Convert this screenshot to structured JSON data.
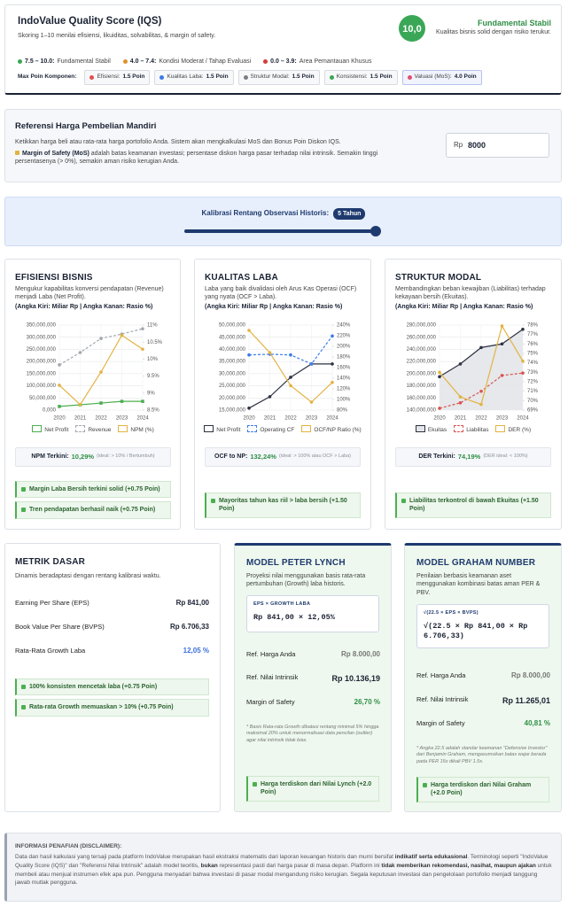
{
  "header": {
    "title": "IndoValue Quality Score (IQS)",
    "subtitle": "Skoring 1–10 menilai efisiensi, likuiditas, solvabilitas, & margin of safety.",
    "score": "10,0",
    "status": "Fundamental Stabil",
    "status_desc": "Kualitas bisnis solid dengan risiko terukur.",
    "legend": [
      {
        "range": "7.5 – 10.0:",
        "label": "Fundamental Stabil",
        "color": "#3aa757"
      },
      {
        "range": "4.0 – 7.4:",
        "label": "Kondisi Moderat / Tahap Evaluasi",
        "color": "#e0902f"
      },
      {
        "range": "0.0 – 3.9:",
        "label": "Area Pemantauan Khusus",
        "color": "#d93a3a"
      }
    ],
    "max_label": "Max Poin Komponen:",
    "components": [
      {
        "label": "Efisiensi:",
        "points": "1.5 Poin"
      },
      {
        "label": "Kualitas Laba:",
        "points": "1.5 Poin"
      },
      {
        "label": "Struktur Modal:",
        "points": "1.5 Poin"
      },
      {
        "label": "Konsistensi:",
        "points": "1.5 Poin"
      },
      {
        "label": "Valuasi (MoS):",
        "points": "4.0 Poin"
      }
    ]
  },
  "reference": {
    "title": "Referensi Harga Pembelian Mandiri",
    "desc": "Ketikkan harga beli atau rata-rata harga portofolio Anda. Sistem akan mengkalkulasi MoS dan Bonus Poin Diskon IQS.",
    "note": [
      {
        "text": "Margin of Safety (MoS)",
        "bold": true
      },
      {
        "text": " adalah batas keamanan investasi; persentase diskon harga pasar terhadap nilai intrinsik. Semakin tinggi persentasenya (> 0%), semakin aman risiko kerugian Anda.",
        "bold": false
      }
    ],
    "currency": "Rp",
    "input_value": "8000"
  },
  "slider": {
    "label": "Kalibrasi Rentang Observasi Historis:",
    "badge": "5 Tahun"
  },
  "chart_data": [
    {
      "type": "line",
      "title": "EFISIENSI BISNIS",
      "subtitle": "Mengukur kapabilitas konversi pendapatan (Revenue) menjadi Laba (Net Profit).",
      "axis_note": "(Angka Kiri: Miliar Rp | Angka Kanan: Rasio %)",
      "categories": [
        "2020",
        "2021",
        "2022",
        "2023",
        "2024"
      ],
      "series": [
        {
          "name": "Net Profit",
          "color": "#4caf50",
          "marker": "square",
          "values": [
            15000000,
            22000000,
            29000000,
            36000000,
            36000000
          ]
        },
        {
          "name": "Revenue",
          "color": "#a3a7ae",
          "dash": true,
          "values": [
            186000000,
            237000000,
            295000000,
            313000000,
            335000000
          ]
        },
        {
          "name": "NPM (%)",
          "color": "#e3b341",
          "axis": "y2",
          "values": [
            9.23,
            8.66,
            9.62,
            10.7,
            10.29
          ]
        }
      ],
      "ylim": [
        0,
        350000000
      ],
      "yticks": [
        {
          "value": 0,
          "label": "0,000"
        },
        {
          "value": 50000000,
          "label": "50,000,000"
        },
        {
          "value": 100000000,
          "label": "100,000,000"
        },
        {
          "value": 150000000,
          "label": "150,000,000"
        },
        {
          "value": 200000000,
          "label": "200,000,000"
        },
        {
          "value": 250000000,
          "label": "250,000,000"
        },
        {
          "value": 300000000,
          "label": "300,000,000"
        },
        {
          "value": 350000000,
          "label": "350,000,000"
        }
      ],
      "y2lim": [
        8.5,
        11
      ],
      "y2ticks": [
        {
          "value": 8.5,
          "label": "8.5%"
        },
        {
          "value": 9,
          "label": "9%"
        },
        {
          "value": 9.5,
          "label": "9.5%"
        },
        {
          "value": 10,
          "label": "10%"
        },
        {
          "value": 10.5,
          "label": "10.5%"
        },
        {
          "value": 11,
          "label": "11%"
        }
      ],
      "grid": true,
      "summary": {
        "label": "NPM Terkini:",
        "value": "10,29%",
        "note": "(ideal: > 10% / Bertumbuh)"
      },
      "badges": [
        "Margin Laba Bersih terkini solid (+0.75 Poin)",
        "Tren pendapatan berhasil naik (+0.75 Poin)"
      ]
    },
    {
      "type": "line",
      "title": "KUALITAS LABA",
      "subtitle": "Laba yang baik divalidasi oleh Arus Kas Operasi (OCF) yang nyata (OCF > Laba).",
      "axis_note": "(Angka Kiri: Miliar Rp | Angka Kanan: Rasio %)",
      "categories": [
        "2020",
        "2021",
        "2022",
        "2023",
        "2024"
      ],
      "series": [
        {
          "name": "Net Profit",
          "color": "#2d3142",
          "values": [
            15800000,
            20500000,
            28500000,
            34000000,
            34000000
          ]
        },
        {
          "name": "Operating CF",
          "color": "#3b7be8",
          "dash": true,
          "values": [
            37700000,
            38000000,
            37700000,
            34000000,
            45500000
          ]
        },
        {
          "name": "OCF/NP Ratio (%)",
          "color": "#e3b341",
          "axis": "y2",
          "values": [
            230,
            188,
            126,
            95,
            132.24
          ]
        }
      ],
      "ylim": [
        15000000,
        50000000
      ],
      "yticks": [
        {
          "value": 15000000,
          "label": "15,000,000"
        },
        {
          "value": 20000000,
          "label": "20,000,000"
        },
        {
          "value": 25000000,
          "label": "25,000,000"
        },
        {
          "value": 30000000,
          "label": "30,000,000"
        },
        {
          "value": 35000000,
          "label": "35,000,000"
        },
        {
          "value": 40000000,
          "label": "40,000,000"
        },
        {
          "value": 45000000,
          "label": "45,000,000"
        },
        {
          "value": 50000000,
          "label": "50,000,000"
        }
      ],
      "y2lim": [
        80,
        240
      ],
      "y2ticks": [
        {
          "value": 80,
          "label": "80%"
        },
        {
          "value": 100,
          "label": "100%"
        },
        {
          "value": 120,
          "label": "120%"
        },
        {
          "value": 140,
          "label": "140%"
        },
        {
          "value": 160,
          "label": "160%"
        },
        {
          "value": 180,
          "label": "180%"
        },
        {
          "value": 200,
          "label": "200%"
        },
        {
          "value": 220,
          "label": "220%"
        },
        {
          "value": 240,
          "label": "240%"
        }
      ],
      "grid": true,
      "summary": {
        "label": "OCF to NP:",
        "value": "132,24%",
        "note": "(ideal: > 100% atau OCF > Laba)"
      },
      "badges": [
        "Mayoritas tahun kas riil > laba bersih (+1.50 Poin)"
      ]
    },
    {
      "type": "line",
      "title": "STRUKTUR MODAL",
      "subtitle": "Membandingkan beban kewajiban (Liabilitas) terhadap kekayaan bersih (Ekuitas).",
      "axis_note": "(Angka Kiri: Miliar Rp | Angka Kanan: Rasio %)",
      "categories": [
        "2020",
        "2021",
        "2022",
        "2023",
        "2024"
      ],
      "series": [
        {
          "name": "Ekuitas",
          "color": "#2d3142",
          "fill": "#e3e5e9",
          "values": [
            195000000,
            216000000,
            243000000,
            249000000,
            273000000
          ]
        },
        {
          "name": "Liabilitas",
          "color": "#d9534f",
          "dash": true,
          "values": [
            143000000,
            152000000,
            171000000,
            197000000,
            201000000
          ]
        },
        {
          "name": "DER (%)",
          "color": "#e3b341",
          "axis": "y2",
          "values": [
            73,
            70.4,
            69.6,
            77.9,
            74.19
          ]
        }
      ],
      "ylim": [
        140000000,
        280000000
      ],
      "yticks": [
        {
          "value": 140000000,
          "label": "140,000,000"
        },
        {
          "value": 160000000,
          "label": "160,000,000"
        },
        {
          "value": 180000000,
          "label": "180,000,000"
        },
        {
          "value": 200000000,
          "label": "200,000,000"
        },
        {
          "value": 220000000,
          "label": "220,000,000"
        },
        {
          "value": 240000000,
          "label": "240,000,000"
        },
        {
          "value": 260000000,
          "label": "260,000,000"
        },
        {
          "value": 280000000,
          "label": "280,000,000"
        }
      ],
      "y2lim": [
        69,
        78
      ],
      "y2ticks": [
        {
          "value": 69,
          "label": "69%"
        },
        {
          "value": 70,
          "label": "70%"
        },
        {
          "value": 71,
          "label": "71%"
        },
        {
          "value": 72,
          "label": "72%"
        },
        {
          "value": 73,
          "label": "73%"
        },
        {
          "value": 74,
          "label": "74%"
        },
        {
          "value": 75,
          "label": "75%"
        },
        {
          "value": 76,
          "label": "76%"
        },
        {
          "value": 77,
          "label": "77%"
        },
        {
          "value": 78,
          "label": "78%"
        }
      ],
      "grid": true,
      "summary": {
        "label": "DER Terkini:",
        "value": "74,19%",
        "note": "(DER ideal: < 100%)"
      },
      "badges": [
        "Liabilitas terkontrol di bawah Ekuitas (+1.50 Poin)"
      ]
    }
  ],
  "metrics": {
    "title": "METRIK DASAR",
    "desc": "Dinamis beradaptasi dengan rentang kalibrasi waktu.",
    "rows": [
      {
        "label": "Earning Per Share (EPS)",
        "value": "Rp 841,00"
      },
      {
        "label": "Book Value Per Share (BVPS)",
        "value": "Rp 6.706,33"
      },
      {
        "label": "Rata-Rata Growth Laba",
        "value": "12,05 %"
      }
    ],
    "badges": [
      "100% konsisten mencetak laba (+0.75 Poin)",
      "Rata-rata Growth memuaskan > 10% (+0.75 Poin)"
    ]
  },
  "models": [
    {
      "title": "MODEL PETER LYNCH",
      "desc": "Proyeksi nilai menggunakan basis rata-rata pertumbuhan (Growth) laba historis.",
      "formula_label": "EPS × GROWTH LABA",
      "formula": "Rp 841,00 × 12,05%",
      "rows": [
        {
          "label": "Ref. Harga Anda",
          "value": "Rp 8.000,00"
        },
        {
          "label": "Ref. Nilai Intrinsik",
          "value": "Rp 10.136,19"
        },
        {
          "label": "Margin of Safety",
          "value": "26,70 %"
        }
      ],
      "note": "* Basis Rata-rata Growth dibatasi rentang minimal 5% hingga maksimal 20% untuk menormalisasi data pencilan (outlier) agar nilai intrinsik tidak bias.",
      "badge": "Harga terdiskon dari Nilai Lynch (+2.0 Poin)"
    },
    {
      "title": "MODEL GRAHAM NUMBER",
      "desc": "Penilaian berbasis keamanan aset menggunakan kombinasi batas aman PER & PBV.",
      "formula_label": "√(22.5 × EPS × BVPS)",
      "formula": "√(22.5 × Rp 841,00 × Rp 6.706,33)",
      "rows": [
        {
          "label": "Ref. Harga Anda",
          "value": "Rp 8.000,00"
        },
        {
          "label": "Ref. Nilai Intrinsik",
          "value": "Rp 11.265,01"
        },
        {
          "label": "Margin of Safety",
          "value": "40,81 %"
        }
      ],
      "note": "* Angka 22.5 adalah standar keamanan \"Defensive Investor\" dari Benjamin Graham, mengasumsikan batas wajar berada pada PER 15x dikali PBV 1.5x.",
      "badge": "Harga terdiskon dari Nilai Graham (+2.0 Poin)"
    }
  ],
  "disclaimer": {
    "title": "INFORMASI PENAFIAN (DISCLAIMER):",
    "segments": [
      {
        "text": "Data dan hasil kalkulasi yang tersaji pada platform IndoValue merupakan hasil ekstraksi matematis dari laporan keuangan historis dan murni bersifat ",
        "bold": false
      },
      {
        "text": "indikatif serta edukasional",
        "bold": true
      },
      {
        "text": ". Terminologi seperti \"IndoValue Quality Score (IQS)\" dan \"Referensi Nilai Intrinsik\" adalah model teoritis, ",
        "bold": false
      },
      {
        "text": "bukan",
        "bold": true
      },
      {
        "text": " representasi pasti dari harga pasar di masa depan. Platform ini ",
        "bold": false
      },
      {
        "text": "tidak memberikan rekomendasi, nasihat, maupun ajakan",
        "bold": true
      },
      {
        "text": " untuk membeli atau menjual instrumen efek apa pun. Pengguna menyadari bahwa investasi di pasar modal mengandung risiko kerugian. Segala keputusan investasi dan pengelolaan portofolio menjadi tanggung jawab mutlak pengguna.",
        "bold": false
      }
    ]
  }
}
